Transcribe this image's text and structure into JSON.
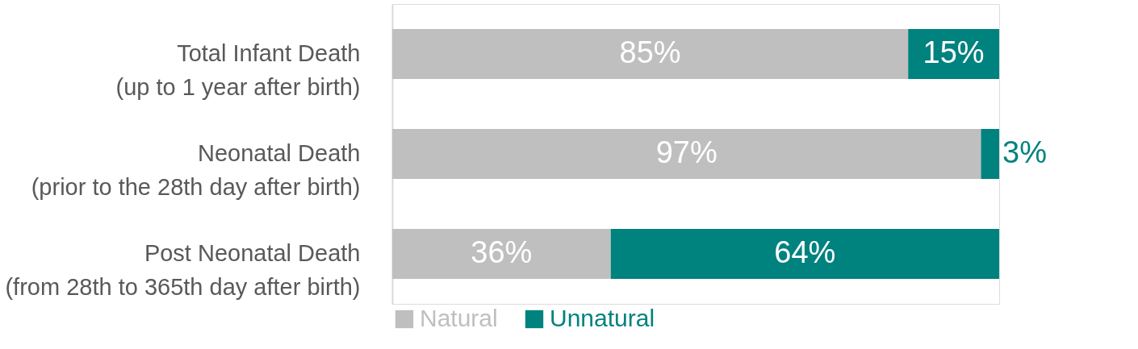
{
  "chart_data": {
    "type": "bar",
    "orientation": "horizontal",
    "stacked": true,
    "categories": [
      "Total Infant Death\n(up to 1 year after birth)",
      "Neonatal Death\n(prior to the 28th day after birth)",
      "Post Neonatal Death\n(from 28th to 365th day after birth)"
    ],
    "series": [
      {
        "name": "Natural",
        "color": "#bfbfbf",
        "values": [
          85,
          97,
          36
        ],
        "value_labels": [
          "85%",
          "97%",
          "36%"
        ]
      },
      {
        "name": "Unnatural",
        "color": "#00827f",
        "values": [
          15,
          3,
          64
        ],
        "value_labels": [
          "15%",
          "3%",
          "64%"
        ]
      }
    ],
    "xlim": [
      0,
      100
    ],
    "tick_labels": "y",
    "grid": false,
    "legend": "bottom"
  }
}
